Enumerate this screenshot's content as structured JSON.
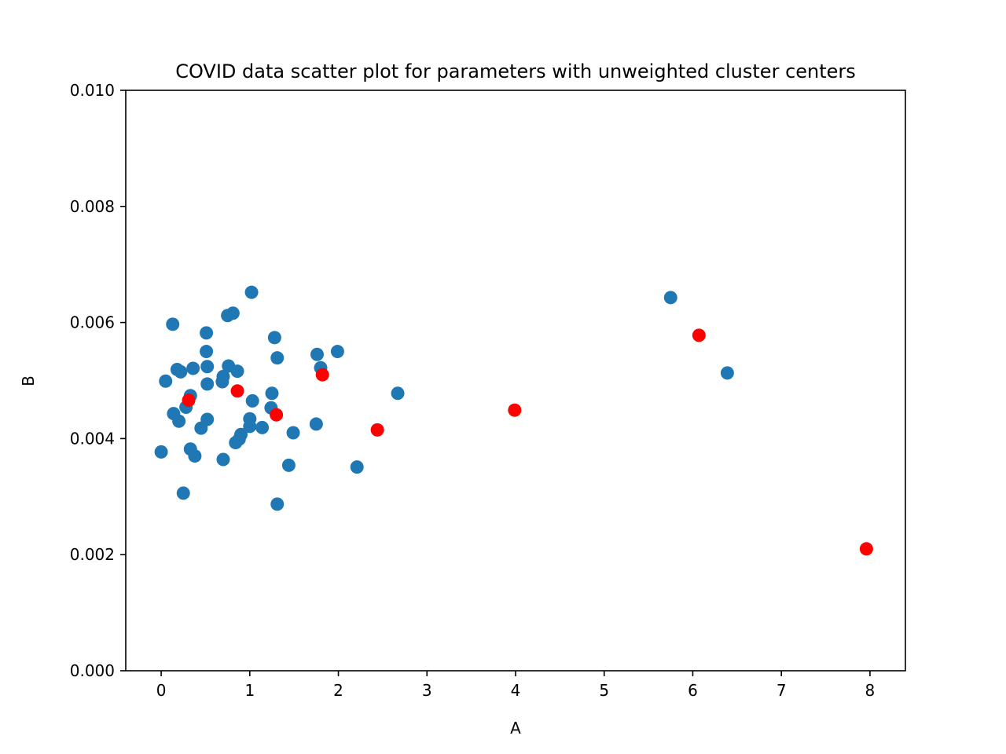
{
  "chart_data": {
    "type": "scatter",
    "title": "COVID data scatter plot for parameters with unweighted cluster centers",
    "xlabel": "A",
    "ylabel": "B",
    "xlim": [
      -0.4,
      8.4
    ],
    "ylim": [
      0.0,
      0.01
    ],
    "xticks": [
      0,
      1,
      2,
      3,
      4,
      5,
      6,
      7,
      8
    ],
    "xtick_labels": [
      "0",
      "1",
      "2",
      "3",
      "4",
      "5",
      "6",
      "7",
      "8"
    ],
    "yticks": [
      0.0,
      0.002,
      0.004,
      0.006,
      0.008,
      0.01
    ],
    "ytick_labels": [
      "0.000",
      "0.002",
      "0.004",
      "0.006",
      "0.008",
      "0.010"
    ],
    "grid": false,
    "series": [
      {
        "color": "#1f77b4",
        "points": [
          [
            0.13,
            0.00597
          ],
          [
            1.02,
            0.00652
          ],
          [
            0.75,
            0.00612
          ],
          [
            0.81,
            0.00616
          ],
          [
            0.51,
            0.00582
          ],
          [
            1.28,
            0.00574
          ],
          [
            0.51,
            0.0055
          ],
          [
            1.76,
            0.00545
          ],
          [
            1.99,
            0.0055
          ],
          [
            1.31,
            0.00539
          ],
          [
            0.05,
            0.00499
          ],
          [
            0.18,
            0.00519
          ],
          [
            0.22,
            0.00515
          ],
          [
            0.36,
            0.00521
          ],
          [
            0.52,
            0.00524
          ],
          [
            0.76,
            0.00525
          ],
          [
            0.86,
            0.00516
          ],
          [
            0.7,
            0.00507
          ],
          [
            0.69,
            0.00498
          ],
          [
            0.52,
            0.00494
          ],
          [
            0.33,
            0.00474
          ],
          [
            1.8,
            0.00522
          ],
          [
            2.67,
            0.00478
          ],
          [
            1.25,
            0.00478
          ],
          [
            1.03,
            0.00465
          ],
          [
            1.24,
            0.00453
          ],
          [
            0.28,
            0.00454
          ],
          [
            0.14,
            0.00443
          ],
          [
            0.2,
            0.0043
          ],
          [
            0.52,
            0.00433
          ],
          [
            1.0,
            0.00434
          ],
          [
            0.45,
            0.00418
          ],
          [
            1.0,
            0.00421
          ],
          [
            1.14,
            0.00419
          ],
          [
            0.9,
            0.00407
          ],
          [
            0.88,
            0.00399
          ],
          [
            0.84,
            0.00393
          ],
          [
            1.49,
            0.0041
          ],
          [
            1.75,
            0.00425
          ],
          [
            0.0,
            0.00377
          ],
          [
            0.33,
            0.00382
          ],
          [
            0.38,
            0.0037
          ],
          [
            0.7,
            0.00364
          ],
          [
            1.44,
            0.00354
          ],
          [
            2.21,
            0.00351
          ],
          [
            0.25,
            0.00306
          ],
          [
            1.31,
            0.00287
          ],
          [
            5.75,
            0.00643
          ],
          [
            6.39,
            0.00513
          ]
        ]
      },
      {
        "color": "#ff0000",
        "points": [
          [
            0.31,
            0.00466
          ],
          [
            0.86,
            0.00482
          ],
          [
            1.3,
            0.00441
          ],
          [
            1.82,
            0.0051
          ],
          [
            2.44,
            0.00415
          ],
          [
            3.99,
            0.00449
          ],
          [
            6.07,
            0.00578
          ],
          [
            7.96,
            0.0021
          ]
        ]
      }
    ]
  }
}
